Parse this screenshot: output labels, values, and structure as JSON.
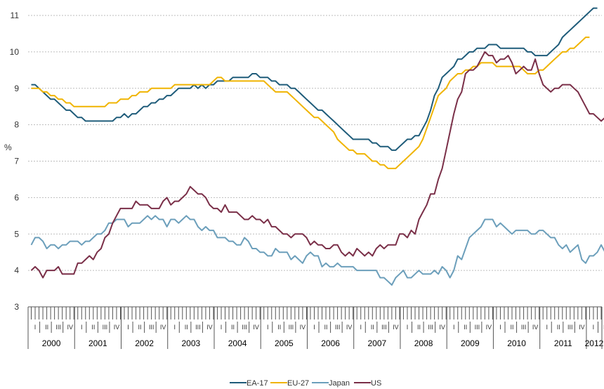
{
  "chart_data": {
    "type": "line",
    "title": "",
    "xlabel": "",
    "ylabel": "%",
    "ylim": [
      3,
      11
    ],
    "yticks": [
      "3",
      "4",
      "5",
      "6",
      "7",
      "8",
      "9",
      "10",
      "11"
    ],
    "grid": "horizontal dotted",
    "legend_position": "bottom",
    "years": [
      "2000",
      "2001",
      "2002",
      "2003",
      "2004",
      "2005",
      "2006",
      "2007",
      "2008",
      "2009",
      "2010",
      "2011",
      "2012"
    ],
    "quarter_labels": [
      "I",
      "II",
      "III",
      "IV"
    ],
    "x_start": "2000-01",
    "x_end": "2012-04",
    "series": [
      {
        "name": "EA-17",
        "color": "#1f5c7a",
        "values": [
          9.1,
          9.1,
          9.0,
          8.9,
          8.8,
          8.7,
          8.7,
          8.6,
          8.5,
          8.4,
          8.4,
          8.3,
          8.2,
          8.2,
          8.1,
          8.1,
          8.1,
          8.1,
          8.1,
          8.1,
          8.1,
          8.1,
          8.2,
          8.2,
          8.3,
          8.2,
          8.3,
          8.3,
          8.4,
          8.5,
          8.5,
          8.6,
          8.6,
          8.7,
          8.7,
          8.8,
          8.8,
          8.9,
          9.0,
          9.0,
          9.0,
          9.0,
          9.1,
          9.0,
          9.1,
          9.0,
          9.1,
          9.1,
          9.2,
          9.2,
          9.2,
          9.2,
          9.3,
          9.3,
          9.3,
          9.3,
          9.3,
          9.4,
          9.4,
          9.3,
          9.3,
          9.3,
          9.2,
          9.2,
          9.1,
          9.1,
          9.1,
          9.0,
          9.0,
          8.9,
          8.8,
          8.7,
          8.6,
          8.5,
          8.4,
          8.4,
          8.3,
          8.2,
          8.1,
          8.0,
          7.9,
          7.8,
          7.7,
          7.6,
          7.6,
          7.6,
          7.6,
          7.6,
          7.5,
          7.5,
          7.4,
          7.4,
          7.4,
          7.3,
          7.3,
          7.4,
          7.5,
          7.6,
          7.6,
          7.7,
          7.7,
          7.9,
          8.1,
          8.4,
          8.8,
          9.0,
          9.3,
          9.4,
          9.5,
          9.6,
          9.8,
          9.8,
          9.9,
          10.0,
          10.0,
          10.1,
          10.1,
          10.1,
          10.2,
          10.2,
          10.2,
          10.1,
          10.1,
          10.1,
          10.1,
          10.1,
          10.1,
          10.1,
          10.0,
          10.0,
          9.9,
          9.9,
          9.9,
          9.9,
          10.0,
          10.1,
          10.2,
          10.4,
          10.5,
          10.6,
          10.7,
          10.8,
          10.9,
          11.0,
          11.1,
          11.2,
          11.2
        ]
      },
      {
        "name": "EU-27",
        "color": "#f0b400",
        "values": [
          9.0,
          9.0,
          9.0,
          8.9,
          8.9,
          8.8,
          8.8,
          8.7,
          8.7,
          8.6,
          8.6,
          8.5,
          8.5,
          8.5,
          8.5,
          8.5,
          8.5,
          8.5,
          8.5,
          8.5,
          8.6,
          8.6,
          8.6,
          8.7,
          8.7,
          8.7,
          8.8,
          8.8,
          8.9,
          8.9,
          8.9,
          9.0,
          9.0,
          9.0,
          9.0,
          9.0,
          9.0,
          9.1,
          9.1,
          9.1,
          9.1,
          9.1,
          9.1,
          9.1,
          9.1,
          9.1,
          9.1,
          9.2,
          9.3,
          9.3,
          9.2,
          9.2,
          9.2,
          9.2,
          9.2,
          9.2,
          9.2,
          9.2,
          9.2,
          9.2,
          9.2,
          9.1,
          9.0,
          8.9,
          8.9,
          8.9,
          8.9,
          8.8,
          8.7,
          8.6,
          8.5,
          8.4,
          8.3,
          8.2,
          8.2,
          8.1,
          8.0,
          7.9,
          7.8,
          7.6,
          7.5,
          7.4,
          7.3,
          7.3,
          7.2,
          7.2,
          7.2,
          7.1,
          7.0,
          7.0,
          6.9,
          6.9,
          6.8,
          6.8,
          6.8,
          6.9,
          7.0,
          7.1,
          7.2,
          7.3,
          7.4,
          7.6,
          7.9,
          8.2,
          8.5,
          8.8,
          8.9,
          9.0,
          9.2,
          9.3,
          9.4,
          9.4,
          9.5,
          9.5,
          9.6,
          9.6,
          9.7,
          9.7,
          9.7,
          9.7,
          9.6,
          9.6,
          9.6,
          9.6,
          9.6,
          9.6,
          9.6,
          9.5,
          9.4,
          9.4,
          9.4,
          9.5,
          9.5,
          9.6,
          9.7,
          9.8,
          9.9,
          10.0,
          10.0,
          10.1,
          10.1,
          10.2,
          10.3,
          10.4,
          10.4
        ]
      },
      {
        "name": "Japan",
        "color": "#6c9fbb",
        "values": [
          4.7,
          4.9,
          4.9,
          4.8,
          4.6,
          4.7,
          4.7,
          4.6,
          4.7,
          4.7,
          4.8,
          4.8,
          4.8,
          4.7,
          4.8,
          4.8,
          4.9,
          5.0,
          5.0,
          5.1,
          5.3,
          5.3,
          5.4,
          5.4,
          5.4,
          5.2,
          5.3,
          5.3,
          5.3,
          5.4,
          5.5,
          5.4,
          5.5,
          5.4,
          5.4,
          5.2,
          5.4,
          5.4,
          5.3,
          5.4,
          5.5,
          5.4,
          5.4,
          5.2,
          5.1,
          5.2,
          5.1,
          5.1,
          4.9,
          4.9,
          4.9,
          4.8,
          4.8,
          4.7,
          4.7,
          4.9,
          4.8,
          4.6,
          4.6,
          4.5,
          4.5,
          4.4,
          4.4,
          4.6,
          4.5,
          4.5,
          4.5,
          4.3,
          4.4,
          4.3,
          4.2,
          4.4,
          4.5,
          4.4,
          4.4,
          4.1,
          4.2,
          4.1,
          4.1,
          4.2,
          4.1,
          4.1,
          4.1,
          4.1,
          4.0,
          4.0,
          4.0,
          4.0,
          4.0,
          4.0,
          3.8,
          3.8,
          3.7,
          3.6,
          3.8,
          3.9,
          4.0,
          3.8,
          3.8,
          3.9,
          4.0,
          3.9,
          3.9,
          3.9,
          4.0,
          3.9,
          4.1,
          4.0,
          3.8,
          4.0,
          4.4,
          4.3,
          4.6,
          4.9,
          5.0,
          5.1,
          5.2,
          5.4,
          5.4,
          5.4,
          5.2,
          5.3,
          5.2,
          5.1,
          5.0,
          5.1,
          5.1,
          5.1,
          5.1,
          5.0,
          5.0,
          5.1,
          5.1,
          5.0,
          4.9,
          4.9,
          4.7,
          4.6,
          4.7,
          4.5,
          4.6,
          4.7,
          4.3,
          4.2,
          4.4,
          4.4,
          4.5,
          4.7,
          4.5,
          4.5,
          4.6,
          4.4
        ]
      },
      {
        "name": "US",
        "color": "#7a2f48",
        "values": [
          4.0,
          4.1,
          4.0,
          3.8,
          4.0,
          4.0,
          4.0,
          4.1,
          3.9,
          3.9,
          3.9,
          3.9,
          4.2,
          4.2,
          4.3,
          4.4,
          4.3,
          4.5,
          4.6,
          4.9,
          5.0,
          5.3,
          5.5,
          5.7,
          5.7,
          5.7,
          5.7,
          5.9,
          5.8,
          5.8,
          5.8,
          5.7,
          5.7,
          5.7,
          5.9,
          6.0,
          5.8,
          5.9,
          5.9,
          6.0,
          6.1,
          6.3,
          6.2,
          6.1,
          6.1,
          6.0,
          5.8,
          5.7,
          5.7,
          5.6,
          5.8,
          5.6,
          5.6,
          5.6,
          5.5,
          5.4,
          5.4,
          5.5,
          5.4,
          5.4,
          5.3,
          5.4,
          5.2,
          5.2,
          5.1,
          5.0,
          5.0,
          4.9,
          5.0,
          5.0,
          5.0,
          4.9,
          4.7,
          4.8,
          4.7,
          4.7,
          4.6,
          4.6,
          4.7,
          4.7,
          4.5,
          4.4,
          4.5,
          4.4,
          4.6,
          4.5,
          4.4,
          4.5,
          4.4,
          4.6,
          4.7,
          4.6,
          4.7,
          4.7,
          4.7,
          5.0,
          5.0,
          4.9,
          5.1,
          5.0,
          5.4,
          5.6,
          5.8,
          6.1,
          6.1,
          6.5,
          6.8,
          7.3,
          7.8,
          8.3,
          8.7,
          8.9,
          9.4,
          9.5,
          9.5,
          9.6,
          9.8,
          10.0,
          9.9,
          9.9,
          9.7,
          9.8,
          9.8,
          9.9,
          9.7,
          9.4,
          9.5,
          9.6,
          9.5,
          9.5,
          9.8,
          9.4,
          9.1,
          9.0,
          8.9,
          9.0,
          9.0,
          9.1,
          9.1,
          9.1,
          9.0,
          8.9,
          8.7,
          8.5,
          8.3,
          8.3,
          8.2,
          8.1,
          8.2,
          8.2
        ]
      }
    ]
  }
}
